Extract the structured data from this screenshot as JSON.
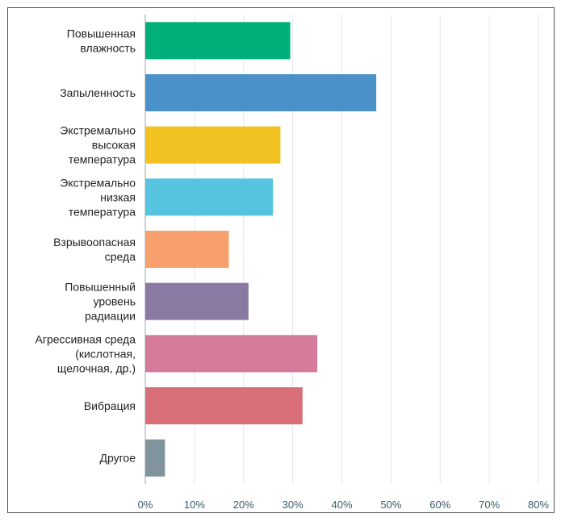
{
  "chart_data": {
    "type": "bar",
    "orientation": "horizontal",
    "categories": [
      [
        "Повышенная",
        "влажность"
      ],
      [
        "Запыленность"
      ],
      [
        "Экстремально",
        "высокая",
        "температура"
      ],
      [
        "Экстремально",
        "низкая",
        "температура"
      ],
      [
        "Взрывоопасная",
        "среда"
      ],
      [
        "Повышенный",
        "уровень",
        "радиации"
      ],
      [
        "Агрессивная среда",
        "(кислотная,",
        "щелочная, др.)"
      ],
      [
        "Вибрация"
      ],
      [
        "Другое"
      ]
    ],
    "values": [
      29.5,
      47.0,
      27.5,
      26.0,
      17.0,
      21.0,
      35.0,
      32.0,
      4.0
    ],
    "colors": [
      "#00af79",
      "#4a90c9",
      "#f2c122",
      "#56c4de",
      "#f7a06d",
      "#8a79a3",
      "#d47a9a",
      "#d86e78",
      "#81939c"
    ],
    "xlim": [
      0,
      80
    ],
    "xticks": [
      "0%",
      "10%",
      "20%",
      "30%",
      "40%",
      "50%",
      "60%",
      "70%",
      "80%"
    ],
    "grid": true,
    "title": "",
    "xlabel": "",
    "ylabel": ""
  }
}
